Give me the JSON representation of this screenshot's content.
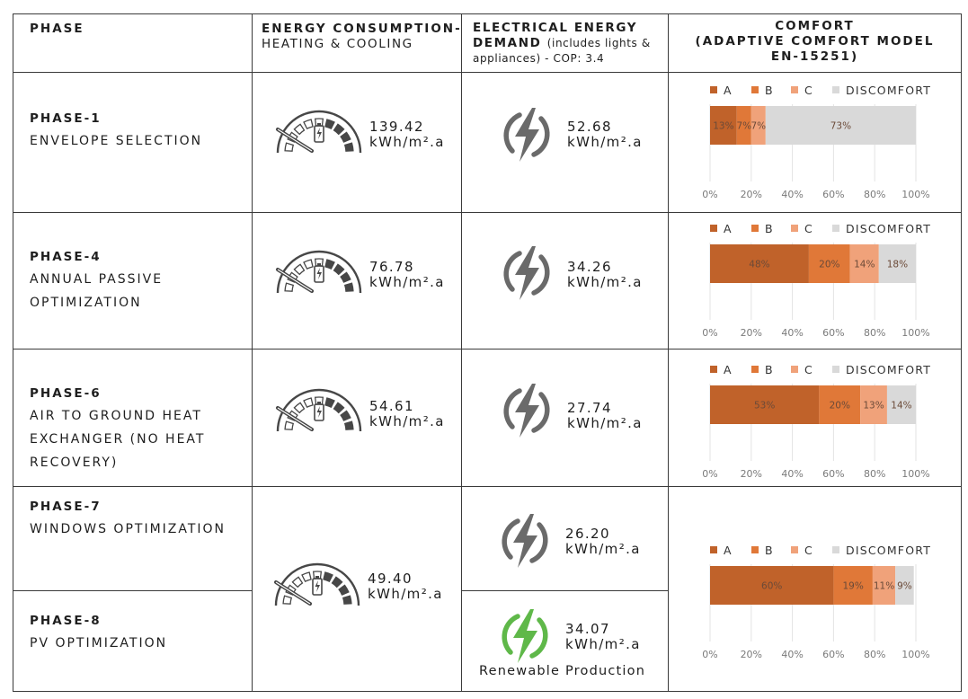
{
  "headers": {
    "phase": "PHASE",
    "energy_line1": "ENERGY CONSUMPTION-",
    "energy_line2": "HEATING & COOLING",
    "elec_line1": "ELECTRICAL ENERGY",
    "elec_line2_bold": "DEMAND",
    "elec_line2_rest": "(includes lights &",
    "elec_line3": "appliances) - COP: 3.4",
    "comfort_line1": "COMFORT",
    "comfort_line2": "(ADAPTIVE COMFORT MODEL",
    "comfort_line3": "EN-15251)"
  },
  "rows": [
    {
      "title": "PHASE-1",
      "desc": [
        "ENVELOPE SELECTION"
      ],
      "energy": {
        "value": "139.42",
        "unit": "kWh/m².a"
      },
      "electric": {
        "value": "52.68",
        "unit": "kWh/m².a"
      }
    },
    {
      "title": "PHASE-4",
      "desc": [
        "ANNUAL PASSIVE",
        "OPTIMIZATION"
      ],
      "energy": {
        "value": "76.78",
        "unit": "kWh/m².a"
      },
      "electric": {
        "value": "34.26",
        "unit": "kWh/m².a"
      }
    },
    {
      "title": "PHASE-6",
      "desc": [
        "AIR TO GROUND HEAT",
        "EXCHANGER (NO HEAT",
        "RECOVERY)"
      ],
      "energy": {
        "value": "54.61",
        "unit": "kWh/m².a"
      },
      "electric": {
        "value": "27.74",
        "unit": "kWh/m².a"
      }
    },
    {
      "title": "PHASE-7",
      "desc": [
        "WINDOWS OPTIMIZATION"
      ],
      "electric": {
        "value": "26.20",
        "unit": "kWh/m².a"
      }
    },
    {
      "title": "PHASE-8",
      "desc": [
        "PV OPTIMIZATION"
      ],
      "electric": {
        "value": "34.07",
        "unit": "kWh/m².a"
      },
      "note": "Renewable Production"
    }
  ],
  "merged_energy": {
    "value": "49.40",
    "unit": "kWh/m².a"
  },
  "colors": {
    "A": "#c0622a",
    "B": "#e07838",
    "C": "#f0a27a",
    "DISCOMFORT": "#d9d9d9",
    "gauge": "#474747",
    "bolt_gray": "#6a6a6a",
    "bolt_green": "#5fb849"
  },
  "chart_data": [
    {
      "type": "bar",
      "title": "Phase-1",
      "categories": [
        "A",
        "B",
        "C",
        "DISCOMFORT"
      ],
      "values": [
        13,
        7,
        7,
        73
      ],
      "labels": [
        "13%",
        "7%",
        "7%",
        "73%"
      ],
      "ticks": [
        "0%",
        "20%",
        "40%",
        "60%",
        "80%",
        "100%"
      ],
      "xlim": [
        0,
        100
      ]
    },
    {
      "type": "bar",
      "title": "Phase-4",
      "categories": [
        "A",
        "B",
        "C",
        "DISCOMFORT"
      ],
      "values": [
        48,
        20,
        14,
        18
      ],
      "labels": [
        "48%",
        "20%",
        "14%",
        "18%"
      ],
      "ticks": [
        "0%",
        "20%",
        "40%",
        "60%",
        "80%",
        "100%"
      ],
      "xlim": [
        0,
        100
      ]
    },
    {
      "type": "bar",
      "title": "Phase-6",
      "categories": [
        "A",
        "B",
        "C",
        "DISCOMFORT"
      ],
      "values": [
        53,
        20,
        13,
        14
      ],
      "labels": [
        "53%",
        "20%",
        "13%",
        "14%"
      ],
      "ticks": [
        "0%",
        "20%",
        "40%",
        "60%",
        "80%",
        "100%"
      ],
      "xlim": [
        0,
        100
      ]
    },
    {
      "type": "bar",
      "title": "Phase-7/8",
      "categories": [
        "A",
        "B",
        "C",
        "DISCOMFORT"
      ],
      "values": [
        60,
        19,
        11,
        9
      ],
      "labels": [
        "60%",
        "19%",
        "11%",
        "9%"
      ],
      "ticks": [
        "0%",
        "20%",
        "40%",
        "60%",
        "80%",
        "100%"
      ],
      "xlim": [
        0,
        100
      ]
    }
  ]
}
